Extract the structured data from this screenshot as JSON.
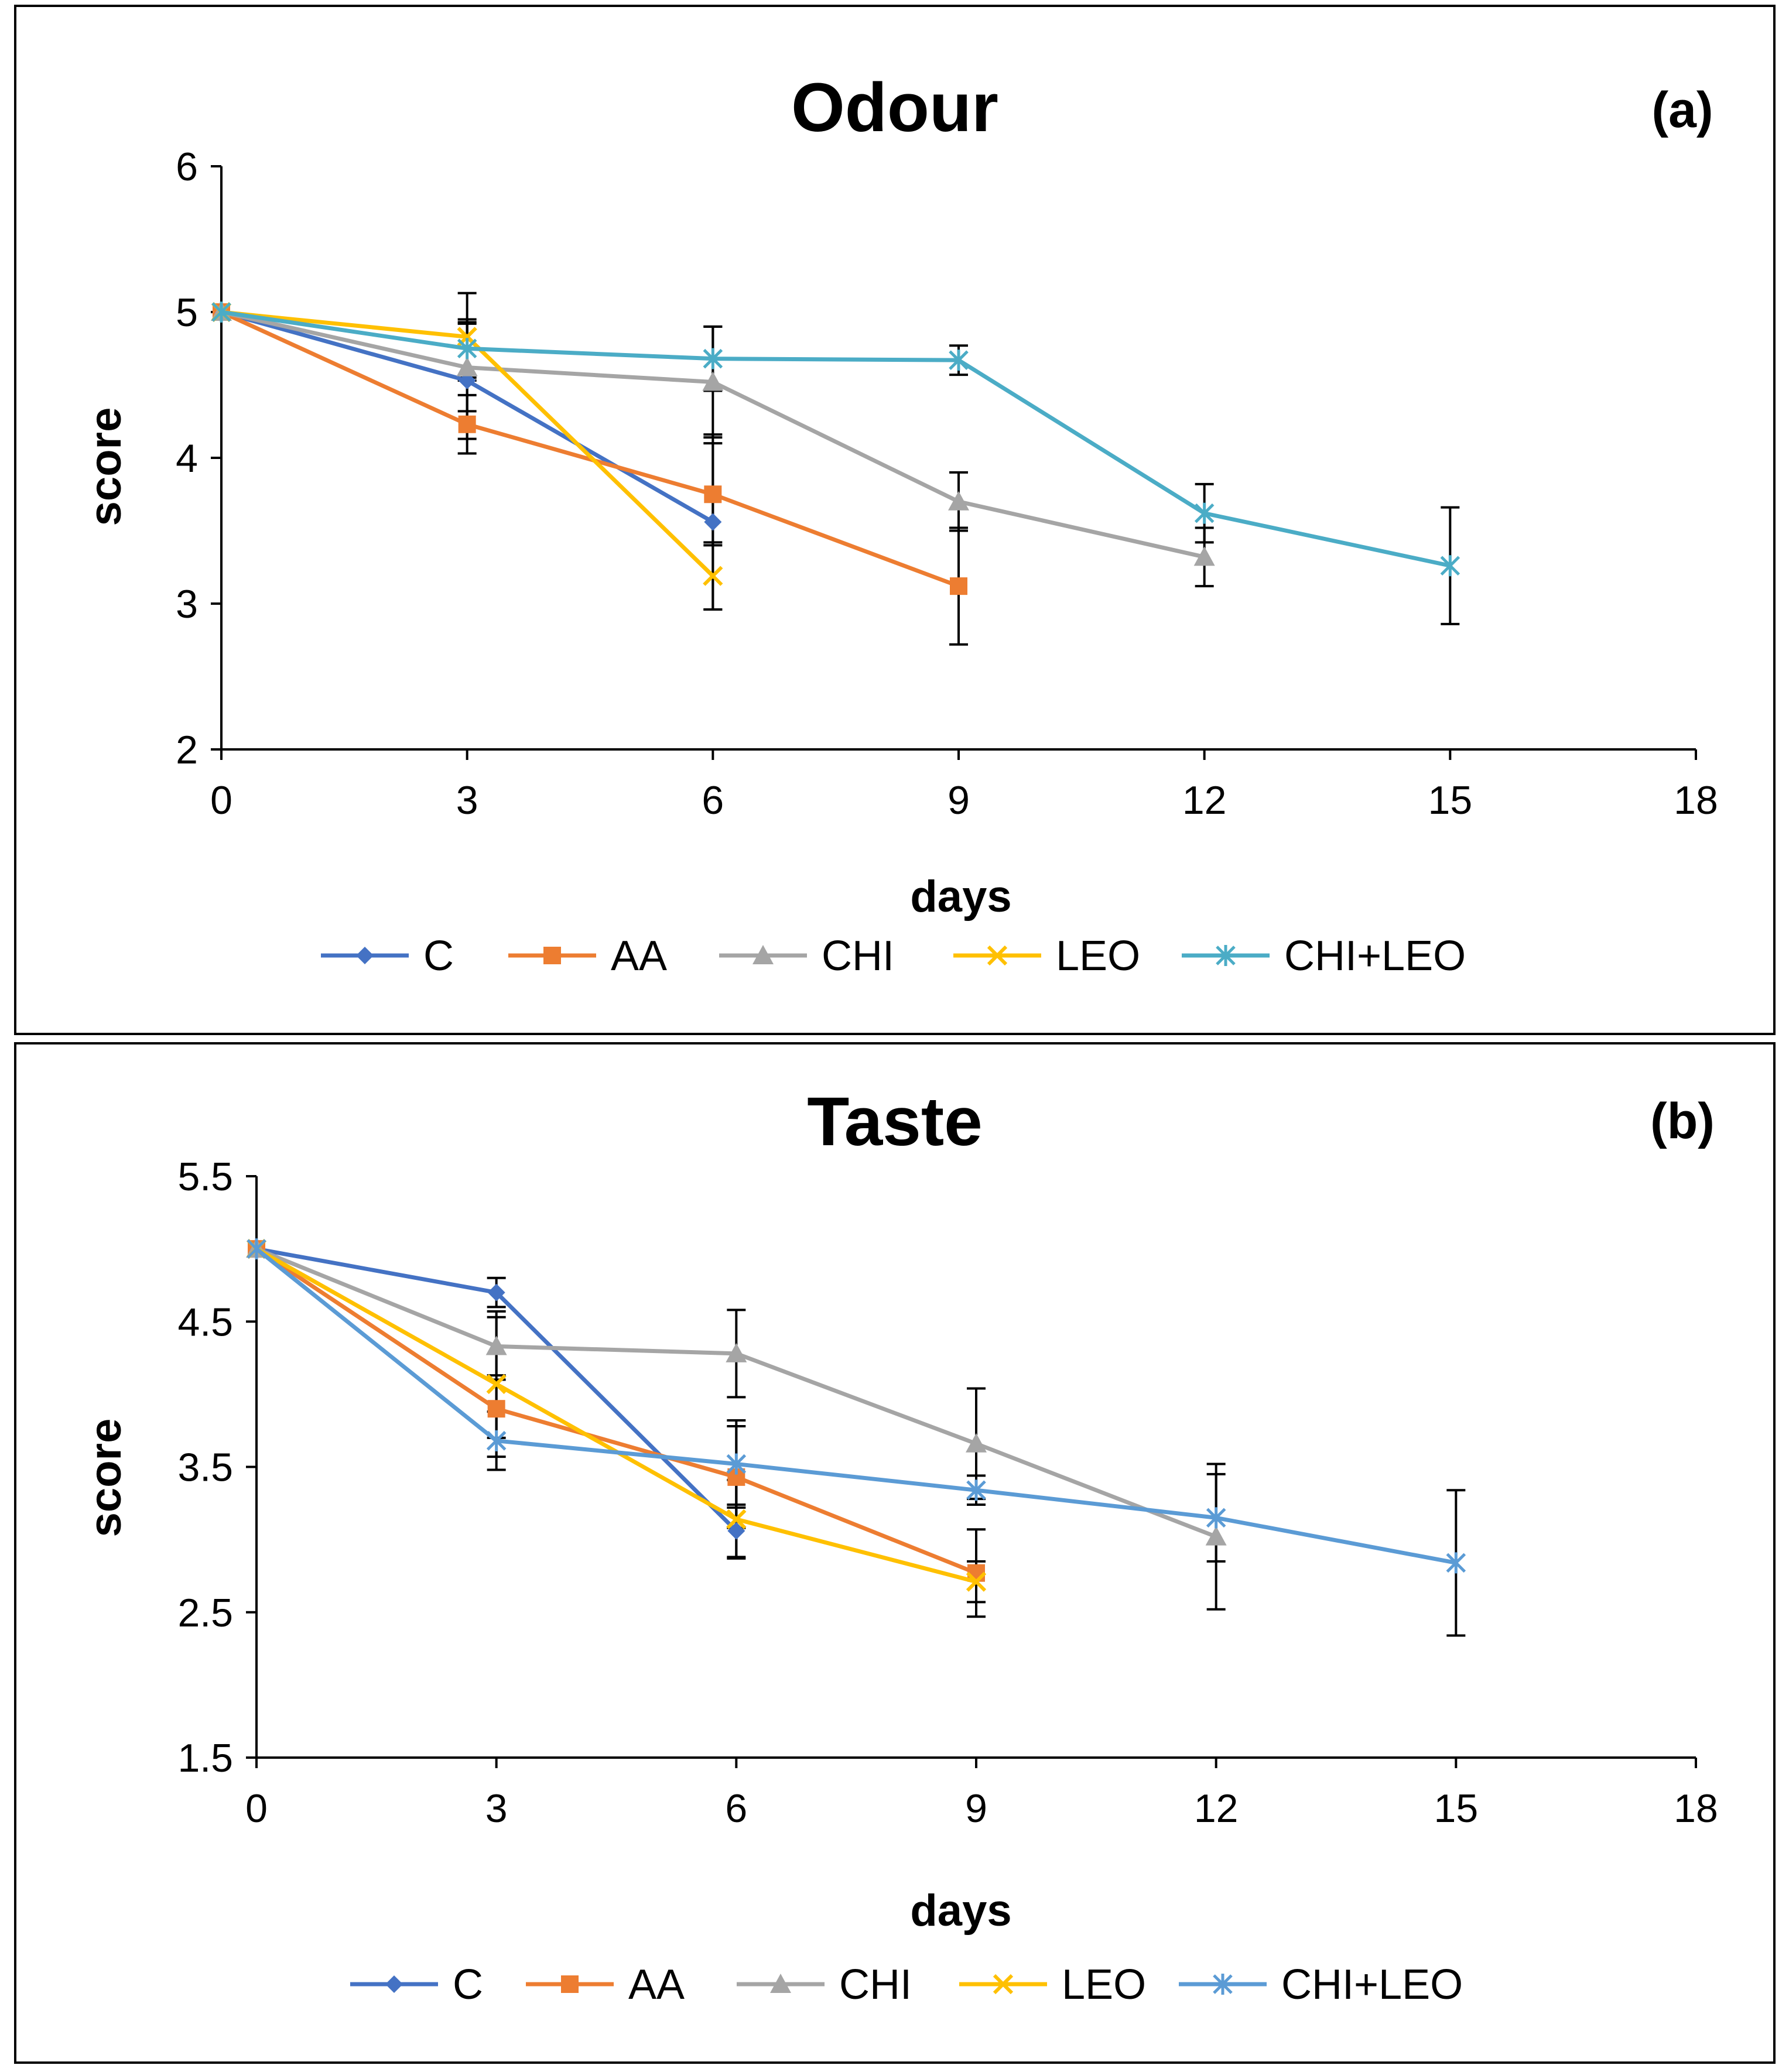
{
  "chart_data": [
    {
      "type": "line",
      "title": "Odour",
      "panel_label": "(a)",
      "xlabel": "days",
      "ylabel": "score",
      "xlim": [
        0,
        18
      ],
      "ylim": [
        2,
        6
      ],
      "x_ticks": [
        "0",
        "3",
        "6",
        "9",
        "12",
        "15",
        "18"
      ],
      "y_ticks": [
        "2",
        "3",
        "4",
        "5",
        "6"
      ],
      "legend_position": "bottom",
      "series": [
        {
          "name": "C",
          "color": "#4472C4",
          "marker": "diamond",
          "x": [
            0,
            3,
            6
          ],
          "values": [
            5.0,
            4.53,
            3.56
          ],
          "errors": [
            0,
            0.4,
            0.6
          ]
        },
        {
          "name": "AA",
          "color": "#ED7D31",
          "marker": "square",
          "x": [
            0,
            3,
            6,
            9
          ],
          "values": [
            5.0,
            4.23,
            3.75,
            3.12
          ],
          "errors": [
            0,
            0.2,
            0.35,
            0.4
          ]
        },
        {
          "name": "CHI",
          "color": "#A5A5A5",
          "marker": "triangle",
          "x": [
            0,
            3,
            6,
            9,
            12
          ],
          "values": [
            5.0,
            4.62,
            4.52,
            3.7,
            3.32
          ],
          "errors": [
            0,
            0.3,
            0.38,
            0.2,
            0.2
          ]
        },
        {
          "name": "LEO",
          "color": "#FFC000",
          "marker": "x",
          "x": [
            0,
            3,
            6
          ],
          "values": [
            5.0,
            4.83,
            3.19
          ],
          "errors": [
            0,
            0.3,
            0.23
          ]
        },
        {
          "name": "CHI+LEO",
          "color": "#4BACC6",
          "marker": "asterisk",
          "x": [
            0,
            3,
            6,
            9,
            12,
            15
          ],
          "values": [
            5.0,
            4.75,
            4.68,
            4.67,
            3.62,
            3.26
          ],
          "errors": [
            0,
            0.2,
            0.22,
            0.1,
            0.2,
            0.4
          ]
        }
      ]
    },
    {
      "type": "line",
      "title": "Taste",
      "panel_label": "(b)",
      "xlabel": "days",
      "ylabel": "score",
      "xlim": [
        0,
        18
      ],
      "ylim": [
        1.5,
        5.5
      ],
      "x_ticks": [
        "0",
        "3",
        "6",
        "9",
        "12",
        "15",
        "18"
      ],
      "y_ticks": [
        "1.5",
        "2.5",
        "3.5",
        "4.5",
        "5.5"
      ],
      "legend_position": "bottom",
      "series": [
        {
          "name": "C",
          "color": "#4472C4",
          "marker": "diamond",
          "x": [
            0,
            3,
            6
          ],
          "values": [
            5.0,
            4.7,
            3.06
          ],
          "errors": [
            0,
            0.1,
            0.18
          ]
        },
        {
          "name": "AA",
          "color": "#ED7D31",
          "marker": "square",
          "x": [
            0,
            3,
            6,
            9
          ],
          "values": [
            5.0,
            3.9,
            3.43,
            2.77
          ],
          "errors": [
            0,
            0.2,
            0.35,
            0.3
          ]
        },
        {
          "name": "CHI",
          "color": "#A5A5A5",
          "marker": "triangle",
          "x": [
            0,
            3,
            6,
            9,
            12
          ],
          "values": [
            5.0,
            4.33,
            4.28,
            3.66,
            3.02
          ],
          "errors": [
            0,
            0.2,
            0.3,
            0.38,
            0.5
          ]
        },
        {
          "name": "LEO",
          "color": "#FFC000",
          "marker": "x",
          "x": [
            0,
            3,
            6,
            9
          ],
          "values": [
            5.0,
            4.07,
            3.14,
            2.71
          ],
          "errors": [
            0,
            0.5,
            0.27,
            0.14
          ]
        },
        {
          "name": "CHI+LEO",
          "color": "#5B9BD5",
          "marker": "asterisk",
          "x": [
            0,
            3,
            6,
            9,
            12,
            15
          ],
          "values": [
            5.0,
            3.68,
            3.52,
            3.34,
            3.15,
            2.84
          ],
          "errors": [
            0,
            0.2,
            0.3,
            0.1,
            0.3,
            0.5
          ]
        }
      ]
    }
  ]
}
